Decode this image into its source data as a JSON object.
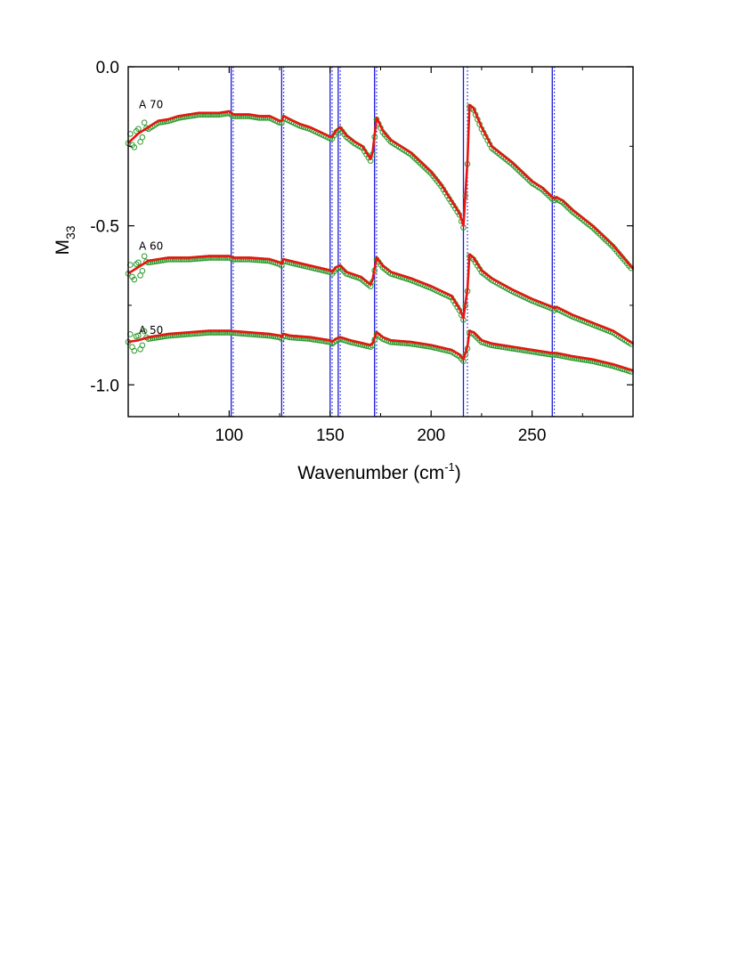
{
  "chart_data": {
    "type": "line",
    "title": "",
    "xlabel": "Wavenumber (cm",
    "xlabel_sup": "-1",
    "xlabel_close": ")",
    "ylabel": "M",
    "ylabel_sub": "33",
    "xlim": [
      50,
      300
    ],
    "ylim": [
      -1.1,
      0.0
    ],
    "xticks": [
      100,
      150,
      200,
      250
    ],
    "xtick_labels": [
      "100",
      "150",
      "200",
      "250"
    ],
    "yticks": [
      0.0,
      -0.5,
      -1.0
    ],
    "ytick_labels": [
      "0.0",
      "-0.5",
      "-1.0"
    ],
    "grid": false,
    "legend": "none",
    "colors": {
      "model_line": "#e8150f",
      "experiment_markers": "#2f9a2f",
      "vertical_lines": "#1a1adc"
    },
    "vertical_lines_solid": [
      101,
      126,
      150,
      154,
      172,
      216,
      260
    ],
    "vertical_lines_dotted": [
      102,
      127,
      151,
      155,
      173,
      218,
      261
    ],
    "series": [
      {
        "name": "A 70",
        "x": [
          50,
          55,
          60,
          65,
          70,
          75,
          80,
          85,
          90,
          95,
          100,
          102,
          105,
          110,
          115,
          120,
          125,
          126,
          127,
          130,
          135,
          140,
          145,
          150,
          151,
          153,
          155,
          158,
          162,
          166,
          170,
          171,
          173,
          176,
          180,
          185,
          190,
          195,
          200,
          205,
          210,
          214,
          216,
          218,
          219,
          221,
          225,
          230,
          240,
          250,
          255,
          260,
          261,
          262,
          265,
          270,
          280,
          290,
          300
        ],
        "y": [
          -0.24,
          -0.21,
          -0.19,
          -0.17,
          -0.165,
          -0.155,
          -0.15,
          -0.145,
          -0.145,
          -0.145,
          -0.14,
          -0.15,
          -0.15,
          -0.15,
          -0.155,
          -0.155,
          -0.17,
          -0.17,
          -0.155,
          -0.165,
          -0.18,
          -0.19,
          -0.205,
          -0.22,
          -0.22,
          -0.2,
          -0.19,
          -0.215,
          -0.235,
          -0.25,
          -0.29,
          -0.27,
          -0.16,
          -0.2,
          -0.23,
          -0.25,
          -0.27,
          -0.3,
          -0.33,
          -0.37,
          -0.42,
          -0.46,
          -0.5,
          -0.3,
          -0.12,
          -0.13,
          -0.19,
          -0.25,
          -0.3,
          -0.36,
          -0.38,
          -0.41,
          -0.415,
          -0.41,
          -0.42,
          -0.45,
          -0.5,
          -0.56,
          -0.635
        ]
      },
      {
        "name": "A 60",
        "x": [
          50,
          55,
          60,
          65,
          70,
          80,
          90,
          100,
          102,
          110,
          120,
          125,
          126,
          127,
          130,
          140,
          150,
          151,
          153,
          155,
          158,
          165,
          170,
          171,
          173,
          176,
          180,
          190,
          200,
          210,
          214,
          216,
          218,
          219,
          221,
          225,
          230,
          240,
          250,
          260,
          261,
          262,
          270,
          280,
          290,
          300
        ],
        "y": [
          -0.65,
          -0.63,
          -0.61,
          -0.605,
          -0.6,
          -0.6,
          -0.595,
          -0.595,
          -0.6,
          -0.6,
          -0.605,
          -0.615,
          -0.62,
          -0.605,
          -0.61,
          -0.625,
          -0.64,
          -0.645,
          -0.63,
          -0.625,
          -0.645,
          -0.66,
          -0.685,
          -0.67,
          -0.6,
          -0.625,
          -0.645,
          -0.665,
          -0.69,
          -0.72,
          -0.76,
          -0.79,
          -0.7,
          -0.59,
          -0.6,
          -0.64,
          -0.665,
          -0.7,
          -0.73,
          -0.755,
          -0.76,
          -0.755,
          -0.78,
          -0.805,
          -0.83,
          -0.87
        ]
      },
      {
        "name": "A 50",
        "x": [
          50,
          55,
          60,
          70,
          80,
          90,
          100,
          110,
          120,
          125,
          126,
          127,
          130,
          140,
          150,
          151,
          153,
          155,
          160,
          170,
          171,
          173,
          176,
          180,
          190,
          200,
          210,
          214,
          216,
          218,
          219,
          221,
          225,
          230,
          240,
          250,
          260,
          262,
          270,
          280,
          290,
          300
        ],
        "y": [
          -0.865,
          -0.86,
          -0.85,
          -0.84,
          -0.835,
          -0.83,
          -0.83,
          -0.835,
          -0.84,
          -0.845,
          -0.85,
          -0.84,
          -0.845,
          -0.85,
          -0.86,
          -0.865,
          -0.855,
          -0.85,
          -0.86,
          -0.875,
          -0.87,
          -0.835,
          -0.85,
          -0.86,
          -0.865,
          -0.875,
          -0.89,
          -0.905,
          -0.92,
          -0.88,
          -0.83,
          -0.835,
          -0.86,
          -0.87,
          -0.88,
          -0.89,
          -0.9,
          -0.9,
          -0.91,
          -0.92,
          -0.935,
          -0.955
        ]
      }
    ],
    "series_labels_on_plot": [
      "A 70",
      "A 60",
      "A 50"
    ]
  }
}
